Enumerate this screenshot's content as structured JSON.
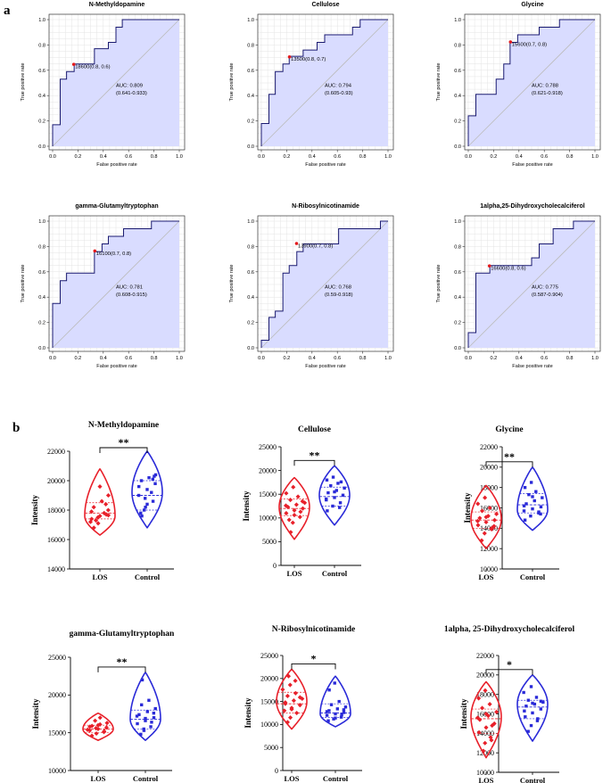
{
  "panel_labels": {
    "a": "a",
    "b": "b"
  },
  "colors": {
    "roc_fill": "#d9dcff",
    "roc_line": "#1a1a70",
    "diag": "#bcbcbc",
    "los": "#e8202a",
    "control": "#2a2ad8",
    "grid": "#e4e4e4",
    "cutoff": "#e31a1c"
  },
  "chart_data": [
    {
      "type": "line",
      "panel": "a",
      "title": "N-Methyldopamine",
      "xlabel": "False positive rate",
      "ylabel": "True positive rate",
      "xlim": [
        0,
        1
      ],
      "ylim": [
        0,
        1
      ],
      "ticks": [
        "0.0",
        "0.2",
        "0.4",
        "0.6",
        "0.8",
        "1.0"
      ],
      "roc_x": [
        0,
        0,
        0.06,
        0.06,
        0.11,
        0.11,
        0.17,
        0.17,
        0.33,
        0.33,
        0.44,
        0.44,
        0.5,
        0.5,
        0.55,
        0.55,
        1
      ],
      "roc_y": [
        0,
        0.17,
        0.17,
        0.53,
        0.53,
        0.59,
        0.59,
        0.65,
        0.65,
        0.77,
        0.77,
        0.82,
        0.82,
        0.94,
        0.94,
        1,
        1
      ],
      "cutoff": {
        "x": 0.167,
        "y": 0.647,
        "label": "18600(0.8, 0.6)"
      },
      "auc_label": "AUC: 0.809",
      "ci_label": "(0.641-0.933)"
    },
    {
      "type": "line",
      "panel": "a",
      "title": "Cellulose",
      "xlabel": "False positive rate",
      "ylabel": "True positive rate",
      "xlim": [
        0,
        1
      ],
      "ylim": [
        0,
        1
      ],
      "ticks": [
        "0.0",
        "0.2",
        "0.4",
        "0.6",
        "0.8",
        "1.0"
      ],
      "roc_x": [
        0,
        0,
        0.06,
        0.06,
        0.11,
        0.11,
        0.17,
        0.17,
        0.22,
        0.22,
        0.28,
        0.28,
        0.33,
        0.33,
        0.44,
        0.44,
        0.5,
        0.5,
        0.72,
        0.72,
        0.78,
        0.78,
        1
      ],
      "roc_y": [
        0,
        0.18,
        0.18,
        0.41,
        0.41,
        0.59,
        0.59,
        0.65,
        0.65,
        0.71,
        0.71,
        0.71,
        0.71,
        0.76,
        0.76,
        0.82,
        0.82,
        0.88,
        0.88,
        0.94,
        0.94,
        1,
        1
      ],
      "cutoff": {
        "x": 0.222,
        "y": 0.706,
        "label": "13500(0.8, 0.7)"
      },
      "auc_label": "AUC: 0.794",
      "ci_label": "(0.605-0.93)"
    },
    {
      "type": "line",
      "panel": "a",
      "title": "Glycine",
      "xlabel": "False positive rate",
      "ylabel": "True positive rate",
      "xlim": [
        0,
        1
      ],
      "ylim": [
        0,
        1
      ],
      "ticks": [
        "0.0",
        "0.2",
        "0.4",
        "0.6",
        "0.8",
        "1.0"
      ],
      "roc_x": [
        0,
        0,
        0.06,
        0.06,
        0.22,
        0.22,
        0.28,
        0.28,
        0.33,
        0.33,
        0.39,
        0.39,
        0.56,
        0.56,
        0.72,
        0.72,
        1
      ],
      "roc_y": [
        0,
        0.24,
        0.24,
        0.41,
        0.41,
        0.53,
        0.53,
        0.65,
        0.65,
        0.82,
        0.82,
        0.88,
        0.88,
        0.94,
        0.94,
        1,
        1
      ],
      "cutoff": {
        "x": 0.333,
        "y": 0.824,
        "label": "15600(0.7, 0.8)"
      },
      "auc_label": "AUC: 0.788",
      "ci_label": "(0.621-0.918)"
    },
    {
      "type": "line",
      "panel": "a",
      "title": "gamma-Glutamyltryptophan",
      "xlabel": "False positive rate",
      "ylabel": "True positive rate",
      "xlim": [
        0,
        1
      ],
      "ylim": [
        0,
        1
      ],
      "ticks": [
        "0.0",
        "0.2",
        "0.4",
        "0.6",
        "0.8",
        "1.0"
      ],
      "roc_x": [
        0,
        0,
        0.06,
        0.06,
        0.11,
        0.11,
        0.33,
        0.33,
        0.39,
        0.39,
        0.44,
        0.44,
        0.5,
        0.5,
        0.56,
        0.56,
        0.61,
        0.61,
        0.78,
        0.78,
        1
      ],
      "roc_y": [
        0,
        0.35,
        0.35,
        0.53,
        0.53,
        0.59,
        0.59,
        0.76,
        0.76,
        0.82,
        0.82,
        0.88,
        0.88,
        0.88,
        0.88,
        0.94,
        0.94,
        0.94,
        0.94,
        1,
        1
      ],
      "cutoff": {
        "x": 0.333,
        "y": 0.765,
        "label": "16100(0.7, 0.8)"
      },
      "auc_label": "AUC: 0.781",
      "ci_label": "(0.608-0.915)"
    },
    {
      "type": "line",
      "panel": "a",
      "title": "N-Ribosylnicotinamide",
      "xlabel": "False positive rate",
      "ylabel": "True positive rate",
      "xlim": [
        0,
        1
      ],
      "ylim": [
        0,
        1
      ],
      "ticks": [
        "0.0",
        "0.2",
        "0.4",
        "0.6",
        "0.8",
        "1.0"
      ],
      "roc_x": [
        0,
        0,
        0.06,
        0.06,
        0.11,
        0.11,
        0.17,
        0.17,
        0.22,
        0.22,
        0.28,
        0.28,
        0.33,
        0.33,
        0.61,
        0.61,
        0.94,
        0.94,
        1
      ],
      "roc_y": [
        0,
        0.06,
        0.06,
        0.24,
        0.24,
        0.29,
        0.29,
        0.59,
        0.59,
        0.65,
        0.65,
        0.76,
        0.76,
        0.82,
        0.82,
        0.94,
        0.94,
        1,
        1
      ],
      "cutoff": {
        "x": 0.278,
        "y": 0.824,
        "label": "13900(0.7, 0.8)"
      },
      "auc_label": "AUC: 0.768",
      "ci_label": "(0.59-0.918)"
    },
    {
      "type": "line",
      "panel": "a",
      "title": "1alpha,25-Dihydroxycholecalciferol",
      "xlabel": "False positive rate",
      "ylabel": "True positive rate",
      "xlim": [
        0,
        1
      ],
      "ylim": [
        0,
        1
      ],
      "ticks": [
        "0.0",
        "0.2",
        "0.4",
        "0.6",
        "0.8",
        "1.0"
      ],
      "roc_x": [
        0,
        0,
        0.06,
        0.06,
        0.17,
        0.17,
        0.5,
        0.5,
        0.56,
        0.56,
        0.67,
        0.67,
        0.83,
        0.83,
        1
      ],
      "roc_y": [
        0,
        0.12,
        0.12,
        0.59,
        0.59,
        0.65,
        0.65,
        0.71,
        0.71,
        0.82,
        0.82,
        0.94,
        0.94,
        1,
        1
      ],
      "cutoff": {
        "x": 0.167,
        "y": 0.647,
        "label": "16600(0.8, 0.6)"
      },
      "auc_label": "AUC: 0.775",
      "ci_label": "(0.587-0.904)"
    },
    {
      "type": "violin",
      "panel": "b",
      "title": "N-Methyldopamine",
      "ylabel": "Intensity",
      "categories": [
        "LOS",
        "Control"
      ],
      "ylim": [
        14000,
        22000
      ],
      "yticks": [
        14000,
        16000,
        18000,
        20000,
        22000
      ],
      "yticklabels": [
        "14000",
        "16000",
        "18000",
        "20000",
        "22000"
      ],
      "significance": "**",
      "groups": [
        {
          "min": 16300,
          "max": 20800,
          "q1": 17400,
          "median": 17800,
          "q3": 18500,
          "mode": 17600,
          "points": [
            17200,
            17500,
            17700,
            17900,
            17600,
            18000,
            18200,
            18600,
            19000,
            17300,
            17800,
            16800,
            17100,
            18400,
            17400,
            19600,
            17650
          ]
        },
        {
          "min": 16800,
          "max": 22000,
          "q1": 18000,
          "median": 19000,
          "q3": 20000,
          "mode": 19200,
          "points": [
            17800,
            18200,
            18600,
            19000,
            19400,
            19800,
            20000,
            20200,
            20400,
            18000,
            19200,
            17600,
            18800,
            20100,
            19600,
            18400,
            20300
          ]
        }
      ]
    },
    {
      "type": "violin",
      "panel": "b",
      "title": "Cellulose",
      "ylabel": "Intensity",
      "categories": [
        "LOS",
        "Control"
      ],
      "ylim": [
        0,
        25000
      ],
      "yticks": [
        0,
        5000,
        10000,
        15000,
        20000,
        25000
      ],
      "yticklabels": [
        "0",
        "5000",
        "10000",
        "15000",
        "20000",
        "25000"
      ],
      "significance": "**",
      "groups": [
        {
          "min": 5500,
          "max": 18500,
          "q1": 10500,
          "median": 12000,
          "q3": 14000,
          "mode": 12300,
          "points": [
            7000,
            9000,
            10200,
            11000,
            11600,
            12000,
            12300,
            12800,
            13200,
            13800,
            14500,
            15200,
            16500,
            11300,
            12600,
            10600,
            13500,
            9600
          ]
        },
        {
          "min": 8500,
          "max": 21000,
          "q1": 12500,
          "median": 14500,
          "q3": 16500,
          "mode": 14800,
          "points": [
            11500,
            12500,
            13200,
            13800,
            14300,
            14800,
            15300,
            15800,
            16300,
            16800,
            17300,
            18000,
            18600,
            12200,
            14000,
            15500,
            17600
          ]
        }
      ]
    },
    {
      "type": "violin",
      "panel": "b",
      "title": "Glycine",
      "ylabel": "Intensity",
      "categories": [
        "LOS",
        "Control"
      ],
      "ylim": [
        10000,
        22000
      ],
      "yticks": [
        10000,
        12000,
        14000,
        16000,
        18000,
        20000,
        22000
      ],
      "yticklabels": [
        "10000",
        "12000",
        "14000",
        "16000",
        "18000",
        "20000",
        "22000"
      ],
      "significance": "**",
      "groups": [
        {
          "min": 12000,
          "max": 18200,
          "q1": 14000,
          "median": 14800,
          "q3": 15600,
          "mode": 14900,
          "points": [
            12800,
            13500,
            14000,
            14300,
            14600,
            14800,
            15000,
            15200,
            15400,
            15700,
            16000,
            16400,
            17000,
            13900,
            14700,
            15100,
            14200
          ]
        },
        {
          "min": 13800,
          "max": 20000,
          "q1": 15500,
          "median": 16300,
          "q3": 17400,
          "mode": 15800,
          "points": [
            14800,
            15200,
            15500,
            15700,
            15900,
            16100,
            16400,
            16700,
            17000,
            17300,
            17600,
            18000,
            18500,
            15600,
            16200,
            17100,
            15400
          ]
        }
      ]
    },
    {
      "type": "violin",
      "panel": "b",
      "title": "gamma-Glutamyltryptophan",
      "ylabel": "Intensity",
      "categories": [
        "LOS",
        "Control"
      ],
      "ylim": [
        10000,
        25000
      ],
      "yticks": [
        10000,
        15000,
        20000,
        25000
      ],
      "yticklabels": [
        "10000",
        "15000",
        "20000",
        "25000"
      ],
      "significance": "**",
      "groups": [
        {
          "min": 14000,
          "max": 17600,
          "q1": 15000,
          "median": 15500,
          "q3": 16000,
          "mode": 15500,
          "points": [
            14600,
            14900,
            15100,
            15300,
            15500,
            15700,
            15900,
            16100,
            16300,
            16600,
            17000,
            15400,
            15600,
            15200,
            15800,
            16000
          ]
        },
        {
          "min": 14000,
          "max": 23000,
          "q1": 15500,
          "median": 16800,
          "q3": 18000,
          "mode": 16800,
          "points": [
            14800,
            15300,
            15800,
            16200,
            16600,
            17000,
            17400,
            17800,
            18200,
            18700,
            19300,
            22000,
            15500,
            16400,
            17200,
            16900,
            17600
          ]
        }
      ]
    },
    {
      "type": "violin",
      "panel": "b",
      "title": "N-Ribosylnicotinamide",
      "ylabel": "Intensity",
      "categories": [
        "LOS",
        "Control"
      ],
      "ylim": [
        0,
        25000
      ],
      "yticks": [
        0,
        5000,
        10000,
        15000,
        20000,
        25000
      ],
      "yticklabels": [
        "0",
        "5000",
        "10000",
        "15000",
        "20000",
        "25000"
      ],
      "significance": "*",
      "groups": [
        {
          "min": 9000,
          "max": 22000,
          "q1": 12500,
          "median": 14500,
          "q3": 17000,
          "mode": 15000,
          "points": [
            10500,
            11500,
            12500,
            13000,
            13600,
            14200,
            14800,
            15200,
            15600,
            16200,
            16800,
            17600,
            18600,
            19500,
            20500,
            13300,
            15900,
            14500
          ]
        },
        {
          "min": 9500,
          "max": 20500,
          "q1": 11500,
          "median": 12500,
          "q3": 14500,
          "mode": 12300,
          "points": [
            10800,
            11200,
            11600,
            12000,
            12300,
            12600,
            13000,
            13400,
            13800,
            14300,
            15000,
            17500,
            19000,
            12100,
            12800,
            11400,
            13200
          ]
        }
      ]
    },
    {
      "type": "violin",
      "panel": "b",
      "title": "1alpha, 25-Dihydroxycholecalciferol",
      "ylabel": "Intensity",
      "categories": [
        "LOS",
        "Control"
      ],
      "ylim": [
        10000,
        22000
      ],
      "yticks": [
        10000,
        12000,
        14000,
        16000,
        18000,
        20000,
        22000
      ],
      "yticklabels": [
        "10000",
        "12000",
        "14000",
        "16000",
        "18000",
        "20000",
        "22000"
      ],
      "significance": "*",
      "groups": [
        {
          "min": 11500,
          "max": 19300,
          "q1": 14000,
          "median": 15500,
          "q3": 16500,
          "mode": 15700,
          "points": [
            12200,
            13000,
            13600,
            14100,
            14600,
            15000,
            15400,
            15800,
            16200,
            16600,
            17000,
            17600,
            18400,
            14800,
            15600,
            16000,
            13300
          ]
        },
        {
          "min": 13200,
          "max": 20000,
          "q1": 15500,
          "median": 16700,
          "q3": 17400,
          "mode": 17000,
          "points": [
            14200,
            14800,
            15300,
            15700,
            16100,
            16500,
            16800,
            17000,
            17200,
            17400,
            17700,
            18200,
            18800,
            15500,
            16300,
            17100,
            17300
          ]
        }
      ]
    }
  ]
}
